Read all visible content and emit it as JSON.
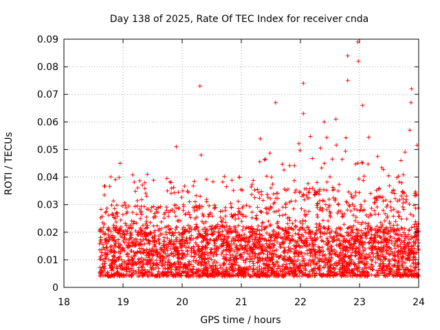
{
  "chart_data": {
    "type": "scatter",
    "title": "Day 138 of 2025, Rate Of TEC Index for receiver cnda",
    "xlabel": "GPS time / hours",
    "ylabel": "ROTI / TECUs",
    "xlim": [
      18,
      24
    ],
    "ylim": [
      0,
      0.09
    ],
    "x_ticks": [
      "18",
      "19",
      "20",
      "21",
      "22",
      "23",
      "24"
    ],
    "y_ticks": [
      "0",
      "0.01",
      "0.02",
      "0.03",
      "0.04",
      "0.05",
      "0.06",
      "0.07",
      "0.08",
      "0.09"
    ],
    "grid": true,
    "marker": "+",
    "series": [
      {
        "name": "ROTI",
        "color": "#ff0000",
        "x_range": [
          18.6,
          24.0
        ],
        "count": 3500,
        "baseline_mean": 0.011,
        "typical_upper": 0.03,
        "notable_points": [
          {
            "x": 18.95,
            "y": 0.045
          },
          {
            "x": 19.9,
            "y": 0.051
          },
          {
            "x": 20.3,
            "y": 0.073
          },
          {
            "x": 20.32,
            "y": 0.048
          },
          {
            "x": 21.58,
            "y": 0.067
          },
          {
            "x": 22.05,
            "y": 0.074
          },
          {
            "x": 22.05,
            "y": 0.063
          },
          {
            "x": 22.8,
            "y": 0.084
          },
          {
            "x": 22.8,
            "y": 0.075
          },
          {
            "x": 22.97,
            "y": 0.089
          },
          {
            "x": 22.98,
            "y": 0.082
          },
          {
            "x": 23.05,
            "y": 0.066
          },
          {
            "x": 23.88,
            "y": 0.072
          },
          {
            "x": 23.87,
            "y": 0.067
          },
          {
            "x": 23.85,
            "y": 0.057
          },
          {
            "x": 23.7,
            "y": 0.046
          },
          {
            "x": 22.4,
            "y": 0.06
          },
          {
            "x": 22.6,
            "y": 0.061
          }
        ]
      }
    ]
  }
}
